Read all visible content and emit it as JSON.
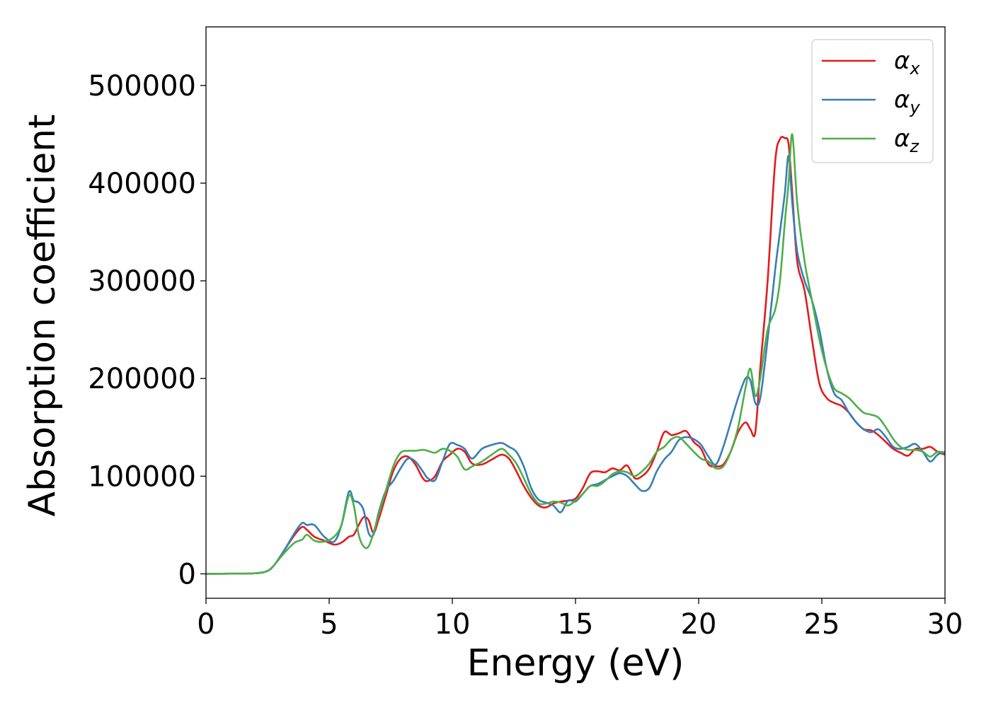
{
  "chart_data": {
    "type": "line",
    "title": "",
    "xlabel": "Energy (eV)",
    "ylabel": "Absorption coefficient",
    "xlim": [
      0,
      30
    ],
    "ylim": [
      -25000,
      560000
    ],
    "xticks": [
      0,
      5,
      10,
      15,
      20,
      25,
      30
    ],
    "xtick_labels": [
      "0",
      "5",
      "10",
      "15",
      "20",
      "25",
      "30"
    ],
    "yticks": [
      0,
      100000,
      200000,
      300000,
      400000,
      500000
    ],
    "ytick_labels": [
      "0",
      "100000",
      "200000",
      "300000",
      "400000",
      "500000"
    ],
    "grid": false,
    "legend_position": "top-right",
    "series": [
      {
        "name": "α",
        "subscript": "x",
        "color": "#e41a1c",
        "x": [
          0,
          1,
          2,
          2.5,
          2.8,
          3.2,
          3.6,
          3.9,
          4.1,
          4.4,
          4.8,
          5.2,
          5.5,
          5.8,
          6.0,
          6.2,
          6.4,
          6.6,
          6.8,
          7.0,
          7.3,
          7.6,
          7.9,
          8.2,
          8.5,
          8.8,
          9.0,
          9.3,
          9.6,
          9.9,
          10.2,
          10.5,
          10.8,
          11.2,
          11.6,
          12.0,
          12.3,
          12.6,
          12.9,
          13.2,
          13.5,
          13.8,
          14.1,
          14.4,
          14.7,
          15.0,
          15.3,
          15.6,
          15.9,
          16.2,
          16.5,
          16.8,
          17.1,
          17.4,
          17.7,
          18.0,
          18.3,
          18.6,
          18.9,
          19.2,
          19.5,
          19.8,
          20.1,
          20.4,
          20.7,
          21.0,
          21.3,
          21.6,
          21.9,
          22.1,
          22.3,
          22.5,
          22.8,
          23.1,
          23.3,
          23.5,
          23.65,
          23.8,
          24.0,
          24.3,
          24.6,
          24.9,
          25.2,
          25.5,
          25.8,
          26.1,
          26.4,
          26.7,
          27.0,
          27.3,
          27.6,
          27.9,
          28.2,
          28.5,
          28.8,
          29.1,
          29.4,
          29.7,
          30.0
        ],
        "values": [
          0,
          200,
          600,
          3000,
          10000,
          25000,
          40000,
          48000,
          45000,
          38000,
          34000,
          30000,
          32000,
          38000,
          40000,
          50000,
          58000,
          55000,
          42000,
          55000,
          80000,
          105000,
          118000,
          120000,
          112000,
          98000,
          95000,
          100000,
          115000,
          122000,
          128000,
          125000,
          113000,
          112000,
          117000,
          122000,
          118000,
          105000,
          90000,
          78000,
          70000,
          68000,
          72000,
          74000,
          75000,
          77000,
          88000,
          103000,
          105000,
          104000,
          108000,
          106000,
          111000,
          98000,
          100000,
          108000,
          125000,
          145000,
          142000,
          144000,
          146000,
          135000,
          128000,
          112000,
          110000,
          112000,
          125000,
          145000,
          155000,
          148000,
          145000,
          210000,
          300000,
          420000,
          445000,
          446000,
          440000,
          390000,
          320000,
          290000,
          240000,
          195000,
          180000,
          175000,
          172000,
          165000,
          155000,
          148000,
          147000,
          142000,
          135000,
          128000,
          124000,
          121000,
          128000,
          128000,
          130000,
          125000,
          122000
        ]
      },
      {
        "name": "α",
        "subscript": "y",
        "color": "#377eb8",
        "x": [
          0,
          1,
          2,
          2.5,
          2.8,
          3.2,
          3.6,
          3.9,
          4.1,
          4.4,
          4.8,
          5.2,
          5.5,
          5.8,
          6.0,
          6.2,
          6.4,
          6.6,
          6.8,
          7.0,
          7.3,
          7.6,
          7.9,
          8.2,
          8.5,
          8.8,
          9.0,
          9.3,
          9.6,
          9.9,
          10.2,
          10.5,
          10.8,
          11.2,
          11.6,
          12.0,
          12.3,
          12.6,
          12.9,
          13.2,
          13.5,
          13.8,
          14.1,
          14.4,
          14.7,
          15.0,
          15.3,
          15.6,
          15.9,
          16.2,
          16.5,
          16.8,
          17.1,
          17.4,
          17.7,
          18.0,
          18.3,
          18.6,
          18.9,
          19.2,
          19.5,
          19.8,
          20.1,
          20.4,
          20.7,
          21.0,
          21.3,
          21.6,
          21.9,
          22.1,
          22.3,
          22.5,
          22.8,
          23.1,
          23.3,
          23.5,
          23.65,
          23.8,
          24.0,
          24.3,
          24.6,
          24.9,
          25.2,
          25.5,
          25.8,
          26.1,
          26.4,
          26.7,
          27.0,
          27.3,
          27.6,
          27.9,
          28.2,
          28.5,
          28.8,
          29.1,
          29.4,
          29.7,
          30.0
        ],
        "values": [
          0,
          200,
          600,
          3000,
          10000,
          25000,
          42000,
          52000,
          50000,
          50000,
          38000,
          33000,
          50000,
          84000,
          75000,
          73000,
          65000,
          42000,
          40000,
          62000,
          85000,
          95000,
          108000,
          118000,
          115000,
          105000,
          98000,
          96000,
          115000,
          133000,
          132000,
          128000,
          118000,
          128000,
          132000,
          134000,
          130000,
          125000,
          110000,
          88000,
          76000,
          73000,
          70000,
          63000,
          75000,
          74000,
          82000,
          90000,
          92000,
          96000,
          100000,
          103000,
          100000,
          92000,
          85000,
          88000,
          105000,
          117000,
          125000,
          137000,
          140000,
          138000,
          132000,
          120000,
          112000,
          130000,
          155000,
          180000,
          200000,
          198000,
          175000,
          180000,
          240000,
          310000,
          350000,
          390000,
          428000,
          380000,
          330000,
          300000,
          280000,
          250000,
          210000,
          185000,
          178000,
          165000,
          155000,
          148000,
          145000,
          148000,
          140000,
          130000,
          128000,
          130000,
          133000,
          125000,
          115000,
          122000,
          125000
        ]
      },
      {
        "name": "α",
        "subscript": "z",
        "color": "#4daf4a",
        "x": [
          0,
          1,
          2,
          2.5,
          2.8,
          3.2,
          3.6,
          3.9,
          4.1,
          4.4,
          4.8,
          5.2,
          5.5,
          5.8,
          6.0,
          6.2,
          6.4,
          6.6,
          6.8,
          7.0,
          7.3,
          7.6,
          7.9,
          8.2,
          8.5,
          8.8,
          9.0,
          9.3,
          9.6,
          9.9,
          10.2,
          10.5,
          10.8,
          11.2,
          11.6,
          12.0,
          12.3,
          12.6,
          12.9,
          13.2,
          13.5,
          13.8,
          14.1,
          14.4,
          14.7,
          15.0,
          15.3,
          15.6,
          15.9,
          16.2,
          16.5,
          16.8,
          17.1,
          17.4,
          17.7,
          18.0,
          18.3,
          18.6,
          18.9,
          19.2,
          19.5,
          19.8,
          20.1,
          20.4,
          20.7,
          21.0,
          21.3,
          21.6,
          21.9,
          22.1,
          22.3,
          22.5,
          22.8,
          23.1,
          23.3,
          23.5,
          23.65,
          23.8,
          24.0,
          24.3,
          24.6,
          24.9,
          25.2,
          25.5,
          25.8,
          26.1,
          26.4,
          26.7,
          27.0,
          27.3,
          27.6,
          27.9,
          28.2,
          28.5,
          28.8,
          29.1,
          29.4,
          29.7,
          30.0
        ],
        "values": [
          0,
          200,
          600,
          3000,
          10000,
          22000,
          32000,
          35000,
          40000,
          34000,
          33000,
          38000,
          50000,
          80000,
          70000,
          40000,
          28000,
          28000,
          42000,
          60000,
          85000,
          110000,
          124000,
          126000,
          126000,
          127000,
          126000,
          124000,
          128000,
          126000,
          120000,
          107000,
          110000,
          115000,
          122000,
          128000,
          122000,
          113000,
          98000,
          82000,
          72000,
          72000,
          74000,
          73000,
          70000,
          75000,
          82000,
          90000,
          90000,
          95000,
          102000,
          105000,
          104000,
          100000,
          105000,
          113000,
          125000,
          130000,
          138000,
          140000,
          133000,
          125000,
          118000,
          115000,
          108000,
          110000,
          125000,
          150000,
          190000,
          210000,
          182000,
          200000,
          250000,
          270000,
          300000,
          360000,
          400000,
          450000,
          380000,
          320000,
          280000,
          240000,
          210000,
          190000,
          185000,
          180000,
          172000,
          165000,
          163000,
          160000,
          150000,
          138000,
          130000,
          127000,
          127000,
          125000,
          120000,
          125000,
          124000
        ]
      }
    ]
  }
}
